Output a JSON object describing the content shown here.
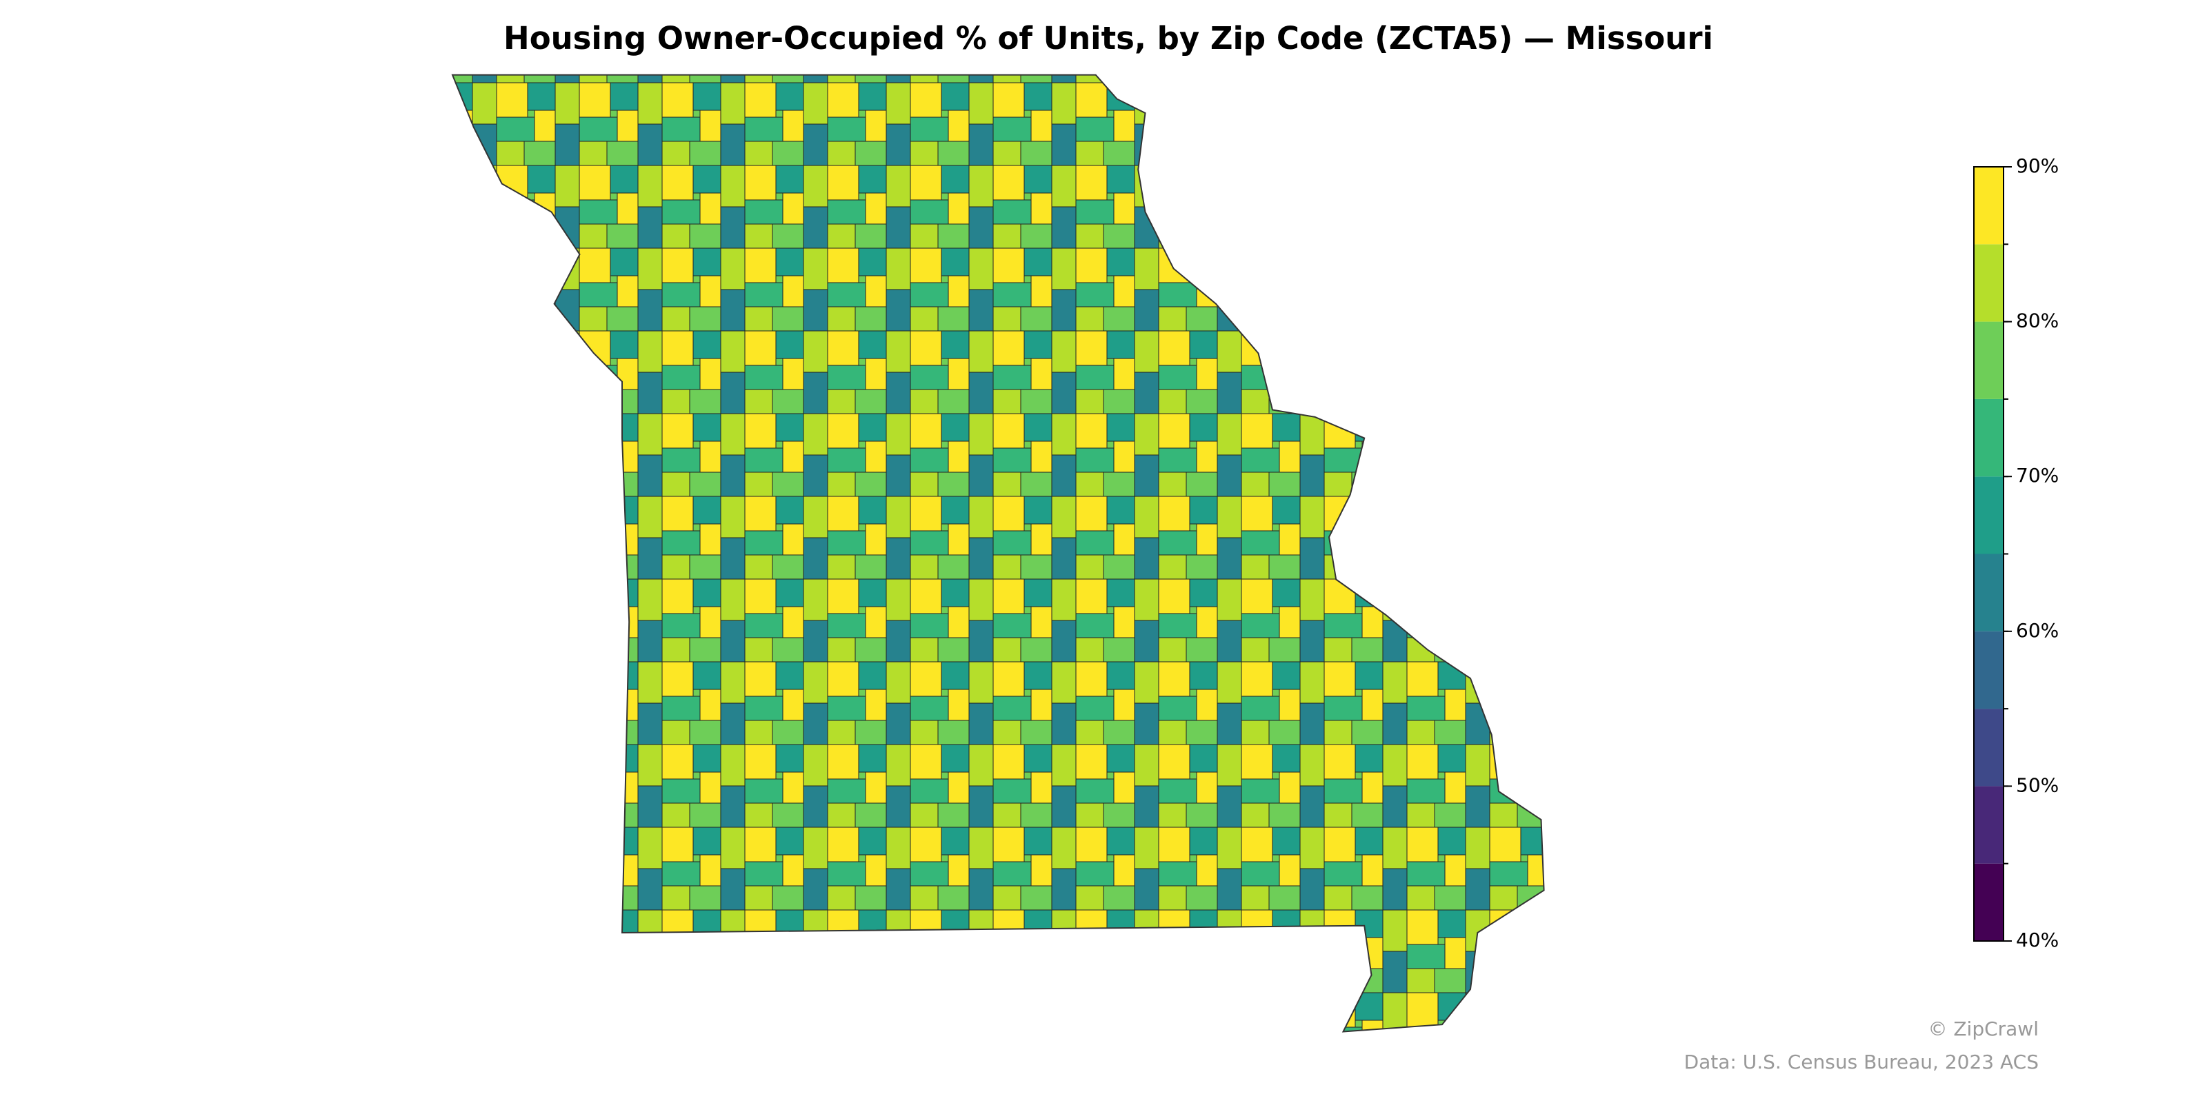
{
  "map": {
    "title": "Housing Owner-Occupied % of Units, by Zip Code (ZCTA5) — Missouri",
    "colorbar": {
      "range": [
        40,
        90
      ],
      "bins": [
        40,
        45,
        50,
        55,
        60,
        65,
        70,
        75,
        80,
        85,
        90
      ],
      "colors": [
        "#440154",
        "#482878",
        "#3e4989",
        "#31688e",
        "#26828e",
        "#1f9e89",
        "#35b779",
        "#6ece58",
        "#b5de2b",
        "#fde725"
      ],
      "ticks": [
        {
          "value": 40,
          "label": "40%"
        },
        {
          "value": 50,
          "label": "50%"
        },
        {
          "value": 60,
          "label": "60%"
        },
        {
          "value": 70,
          "label": "70%"
        },
        {
          "value": 80,
          "label": "80%"
        },
        {
          "value": 90,
          "label": "90%"
        }
      ]
    },
    "credit": "© ZipCrawl",
    "source": "Data: U.S. Census Bureau, 2023 ACS"
  }
}
